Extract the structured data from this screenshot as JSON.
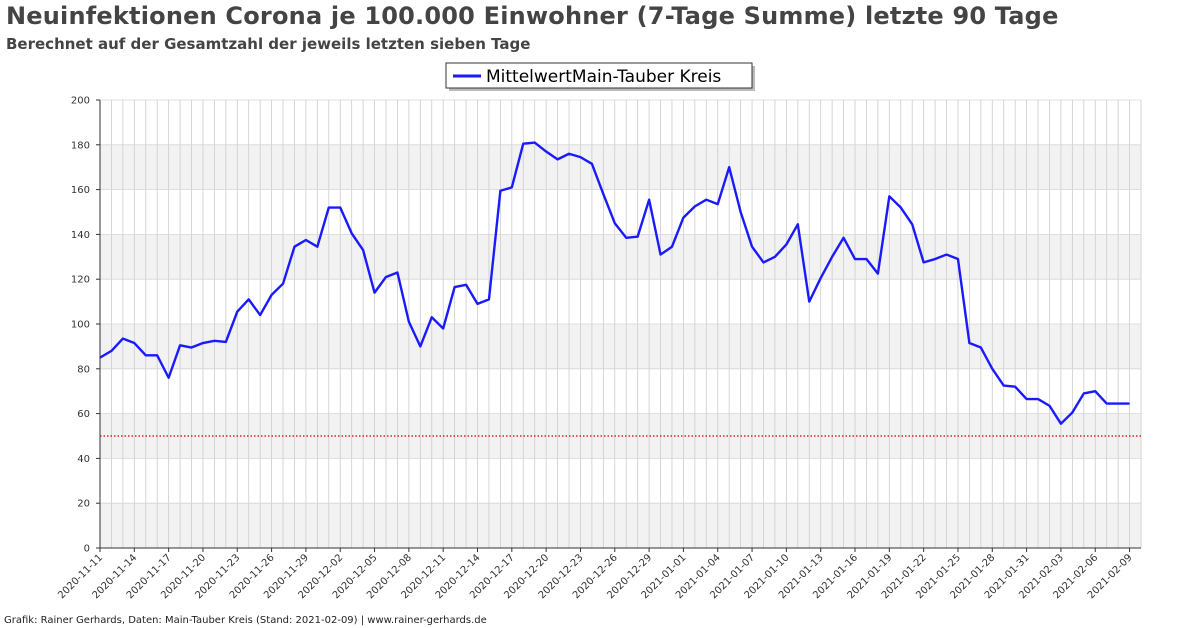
{
  "chart_data": {
    "type": "line",
    "title": "Neuinfektionen Corona je 100.000 Einwohner (7-Tage Summe) letzte 90 Tage",
    "subtitle": "Berechnet auf der Gesamtzahl der jeweils letzten sieben Tage",
    "footer": "Grafik: Rainer Gerhards, Daten: Main-Tauber Kreis (Stand: 2021-02-09) | www.rainer-gerhards.de",
    "xlabel": "",
    "ylabel": "",
    "ylim": [
      0,
      200
    ],
    "yticks": [
      0,
      20,
      40,
      60,
      80,
      100,
      120,
      140,
      160,
      180,
      200
    ],
    "xlim": [
      "2020-11-11",
      "2021-02-10"
    ],
    "xtick_labels": [
      "2020-11-11",
      "2020-11-14",
      "2020-11-17",
      "2020-11-20",
      "2020-11-23",
      "2020-11-26",
      "2020-11-29",
      "2020-12-02",
      "2020-12-05",
      "2020-12-08",
      "2020-12-11",
      "2020-12-14",
      "2020-12-17",
      "2020-12-20",
      "2020-12-23",
      "2020-12-26",
      "2020-12-29",
      "2021-01-01",
      "2021-01-04",
      "2021-01-07",
      "2021-01-10",
      "2021-01-13",
      "2021-01-16",
      "2021-01-19",
      "2021-01-22",
      "2021-01-25",
      "2021-01-28",
      "2021-01-31",
      "2021-02-03",
      "2021-02-06",
      "2021-02-09"
    ],
    "grid": true,
    "legend_position": "top-center",
    "reference_line": {
      "y": 50,
      "color": "#cc0000",
      "style": "dotted"
    },
    "colors": {
      "series": "#1a1aff",
      "band": "#f2f2f2",
      "grid": "#cccccc"
    },
    "series": [
      {
        "name": "MittelwertMain-Tauber Kreis",
        "start": "2020-11-11",
        "values": [
          85,
          88,
          93.5,
          91.5,
          86,
          86,
          76,
          90.5,
          89.5,
          91.5,
          92.5,
          92,
          105.5,
          111,
          104,
          113,
          118,
          134.5,
          137.5,
          134.5,
          152,
          152,
          140.5,
          133,
          114,
          121,
          123,
          101,
          90,
          103,
          98,
          116.5,
          117.5,
          109,
          111,
          159.5,
          161,
          180.5,
          181,
          177,
          173.5,
          176,
          174.5,
          171.5,
          158,
          145,
          138.5,
          139,
          155.5,
          131,
          134.5,
          147.5,
          152.5,
          155.5,
          153.5,
          170,
          150,
          134.5,
          127.5,
          130,
          135.5,
          144.5,
          110,
          120.5,
          130,
          138.5,
          129,
          129,
          122.5,
          157,
          152,
          144.5,
          127.5,
          129,
          131,
          129,
          91.5,
          89.5,
          80,
          72.5,
          72,
          66.5,
          66.5,
          63.5,
          55.5,
          60.5,
          69,
          70,
          64.5,
          64.5,
          64.5
        ]
      }
    ]
  }
}
